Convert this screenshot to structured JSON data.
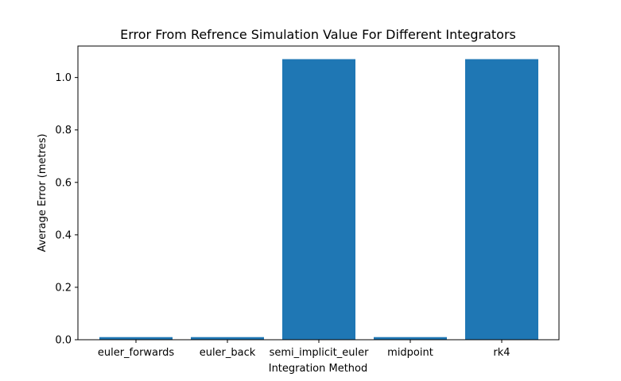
{
  "chart_data": {
    "type": "bar",
    "title": "Error From Refrence Simulation Value For Different Integrators",
    "xlabel": "Integration Method",
    "ylabel": "Average Error (metres)",
    "categories": [
      "euler_forwards",
      "euler_back",
      "semi_implicit_euler",
      "midpoint",
      "rk4"
    ],
    "values": [
      0.01,
      0.01,
      1.07,
      0.01,
      1.07
    ],
    "ylim": [
      0,
      1.12
    ],
    "yticks": [
      0.0,
      0.2,
      0.4,
      0.6,
      0.8,
      1.0
    ],
    "ytick_labels": [
      "0.0",
      "0.2",
      "0.4",
      "0.6",
      "0.8",
      "1.0"
    ],
    "grid": false,
    "bar_color": "#1f77b4"
  }
}
